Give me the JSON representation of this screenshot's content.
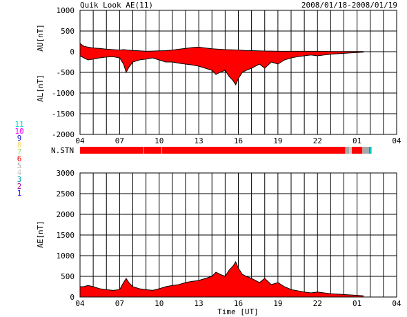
{
  "header": {
    "title": "Quik Look AE(11)",
    "date_range": "2008/01/18-2008/01/19"
  },
  "legend": {
    "stations": [
      {
        "label": "11",
        "color": "#00d8d8"
      },
      {
        "label": "10",
        "color": "#ff00ff"
      },
      {
        "label": "9",
        "color": "#1010c0"
      },
      {
        "label": "8",
        "color": "#ffd860"
      },
      {
        "label": "7",
        "color": "#a0e060"
      },
      {
        "label": "6",
        "color": "#ff0000"
      },
      {
        "label": "5",
        "color": "#a8a8a8"
      },
      {
        "label": "4",
        "color": "#c8c8c8"
      },
      {
        "label": "3",
        "color": "#00a0a0"
      },
      {
        "label": "2",
        "color": "#a000a0"
      },
      {
        "label": "1",
        "color": "#2020ff"
      }
    ]
  },
  "colors": {
    "fill": "#ff0000",
    "line": "#000000",
    "grid": "#000000"
  },
  "chart_data": [
    {
      "type": "area",
      "name": "AU/AL panel",
      "ylabel_top": "AU[nT]",
      "ylabel_bottom": "AL[nT]",
      "xticks": [
        "04",
        "07",
        "10",
        "13",
        "16",
        "19",
        "22",
        "01",
        "04"
      ],
      "yticks": [
        "1000",
        "500",
        "0",
        "-500",
        "-1000",
        "-1500",
        "-2000"
      ],
      "xlim": [
        0,
        24
      ],
      "ylim": [
        -2000,
        1000
      ],
      "grid": true,
      "au": {
        "x": [
          0,
          0.3,
          0.6,
          1,
          1.5,
          2,
          2.5,
          3,
          3.3,
          3.6,
          4,
          4.5,
          5,
          5.5,
          6,
          6.5,
          7,
          7.5,
          8,
          8.5,
          9,
          9.5,
          10,
          10.5,
          11,
          11.5,
          12,
          12.5,
          13,
          13.5,
          14,
          14.5,
          15,
          15.5,
          16,
          16.5,
          17,
          17.5,
          18,
          18.5,
          19,
          19.5,
          20,
          20.5,
          21,
          21.5
        ],
        "y": [
          200,
          130,
          110,
          90,
          80,
          60,
          50,
          40,
          50,
          40,
          30,
          20,
          10,
          15,
          20,
          25,
          40,
          60,
          80,
          100,
          110,
          90,
          70,
          60,
          50,
          45,
          40,
          30,
          25,
          20,
          15,
          15,
          10,
          10,
          10,
          10,
          10,
          10,
          10,
          10,
          5,
          5,
          5,
          5,
          5,
          5
        ]
      },
      "al": {
        "x": [
          0,
          0.3,
          0.6,
          1,
          1.5,
          2,
          2.5,
          3,
          3.3,
          3.5,
          3.7,
          4,
          4.5,
          5,
          5.5,
          6,
          6.5,
          7,
          7.5,
          8,
          8.5,
          9,
          9.5,
          10,
          10.3,
          10.6,
          11,
          11.3,
          11.6,
          11.8,
          12,
          12.3,
          12.6,
          13,
          13.3,
          13.6,
          14,
          14.5,
          15,
          15.5,
          16,
          16.5,
          17,
          17.5,
          18,
          18.5,
          19,
          19.5,
          20,
          20.5,
          21,
          21.5
        ],
        "y": [
          -100,
          -150,
          -200,
          -180,
          -150,
          -130,
          -120,
          -150,
          -300,
          -500,
          -380,
          -250,
          -200,
          -180,
          -150,
          -200,
          -250,
          -250,
          -280,
          -300,
          -320,
          -350,
          -400,
          -450,
          -550,
          -500,
          -450,
          -600,
          -700,
          -800,
          -650,
          -500,
          -450,
          -400,
          -350,
          -300,
          -400,
          -250,
          -300,
          -200,
          -150,
          -120,
          -100,
          -80,
          -100,
          -80,
          -60,
          -50,
          -40,
          -30,
          -20,
          -10
        ]
      }
    },
    {
      "type": "heatmap",
      "name": "station count bar",
      "label": "N.STN",
      "segments": [
        {
          "from": 0,
          "to": 20.1,
          "value": 6
        },
        {
          "from": 20.1,
          "to": 20.4,
          "value": 5
        },
        {
          "from": 20.4,
          "to": 20.6,
          "value": 4
        },
        {
          "from": 20.6,
          "to": 21.4,
          "value": 6
        },
        {
          "from": 21.4,
          "to": 21.9,
          "value": 5
        },
        {
          "from": 21.9,
          "to": 22.0,
          "value": 3
        },
        {
          "from": 22.0,
          "to": 22.1,
          "value": 11
        }
      ]
    },
    {
      "type": "area",
      "name": "AE panel",
      "ylabel": "AE[nT]",
      "xlabel": "Time [UT]",
      "xticks": [
        "04",
        "07",
        "10",
        "13",
        "16",
        "19",
        "22",
        "01",
        "04"
      ],
      "yticks": [
        "3000",
        "2500",
        "2000",
        "1500",
        "1000",
        "500",
        "0"
      ],
      "xlim": [
        0,
        24
      ],
      "ylim": [
        0,
        3000
      ],
      "grid": true,
      "x": [
        0,
        0.3,
        0.6,
        1,
        1.5,
        2,
        2.5,
        3,
        3.3,
        3.5,
        3.7,
        4,
        4.5,
        5,
        5.5,
        6,
        6.5,
        7,
        7.5,
        8,
        8.5,
        9,
        9.5,
        10,
        10.3,
        10.6,
        11,
        11.3,
        11.6,
        11.8,
        12,
        12.3,
        12.6,
        13,
        13.3,
        13.6,
        14,
        14.5,
        15,
        15.5,
        16,
        16.5,
        17,
        17.5,
        18,
        18.5,
        19,
        19.5,
        20,
        20.5,
        21,
        21.5
      ],
      "y": [
        250,
        250,
        280,
        250,
        200,
        180,
        160,
        180,
        350,
        450,
        350,
        250,
        200,
        180,
        160,
        200,
        250,
        280,
        300,
        350,
        380,
        400,
        450,
        500,
        600,
        550,
        500,
        650,
        750,
        850,
        700,
        550,
        500,
        450,
        400,
        350,
        450,
        300,
        350,
        250,
        180,
        150,
        120,
        100,
        120,
        100,
        80,
        70,
        60,
        50,
        40,
        30
      ]
    }
  ]
}
